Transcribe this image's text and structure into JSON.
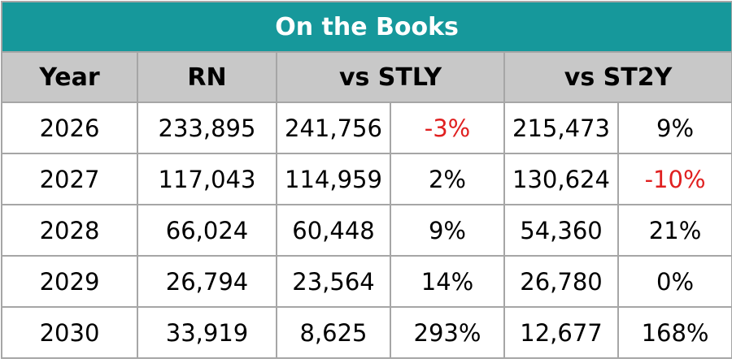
{
  "table": {
    "title": "On the Books",
    "headers": {
      "year": "Year",
      "rn": "RN",
      "stly": "vs STLY",
      "st2y": "vs ST2Y"
    },
    "rows": [
      {
        "year": "2026",
        "rn": "233,895",
        "stly_value": "241,756",
        "stly_pct": "-3%",
        "st2y_value": "215,473",
        "st2y_pct": "9%"
      },
      {
        "year": "2027",
        "rn": "117,043",
        "stly_value": "114,959",
        "stly_pct": "2%",
        "st2y_value": "130,624",
        "st2y_pct": "-10%"
      },
      {
        "year": "2028",
        "rn": "66,024",
        "stly_value": "60,448",
        "stly_pct": "9%",
        "st2y_value": "54,360",
        "st2y_pct": "21%"
      },
      {
        "year": "2029",
        "rn": "26,794",
        "stly_value": "23,564",
        "stly_pct": "14%",
        "st2y_value": "26,780",
        "st2y_pct": "0%"
      },
      {
        "year": "2030",
        "rn": "33,919",
        "stly_value": "8,625",
        "stly_pct": "293%",
        "st2y_value": "12,677",
        "st2y_pct": "168%"
      }
    ],
    "colors": {
      "title_bg": "#16989b",
      "header_bg": "#c8c8c8",
      "negative": "#e02020",
      "border": "#a6a6a6"
    }
  }
}
